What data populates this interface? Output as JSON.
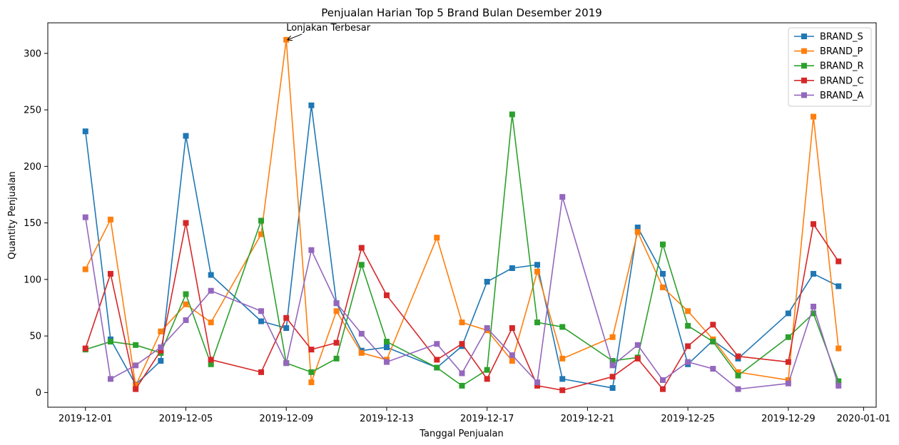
{
  "chart_data": {
    "type": "line",
    "title": "Penjualan Harian Top 5 Brand Bulan Desember 2019",
    "xlabel": "Tanggal Penjualan",
    "ylabel": "Quantity Penjualan",
    "x_ticks": [
      "2019-12-01",
      "2019-12-05",
      "2019-12-09",
      "2019-12-13",
      "2019-12-17",
      "2019-12-21",
      "2019-12-25",
      "2019-12-29",
      "2020-01-01"
    ],
    "y_ticks": [
      0,
      50,
      100,
      150,
      200,
      250,
      300
    ],
    "xlim": [
      "2019-11-29",
      "2020-01-01"
    ],
    "ylim": [
      -13,
      327
    ],
    "legend_position": "top-right",
    "grid": false,
    "series": [
      {
        "name": "BRAND_S",
        "color": "#1f77b4",
        "points": [
          [
            "2019-12-01",
            231
          ],
          [
            "2019-12-02",
            47
          ],
          [
            "2019-12-03",
            7
          ],
          [
            "2019-12-04",
            28
          ],
          [
            "2019-12-05",
            227
          ],
          [
            "2019-12-06",
            104
          ],
          [
            "2019-12-08",
            63
          ],
          [
            "2019-12-09",
            57
          ],
          [
            "2019-12-10",
            254
          ],
          [
            "2019-12-11",
            79
          ],
          [
            "2019-12-12",
            37
          ],
          [
            "2019-12-13",
            40
          ],
          [
            "2019-12-15",
            22
          ],
          [
            "2019-12-16",
            41
          ],
          [
            "2019-12-17",
            98
          ],
          [
            "2019-12-18",
            110
          ],
          [
            "2019-12-19",
            113
          ],
          [
            "2019-12-20",
            12
          ],
          [
            "2019-12-22",
            4
          ],
          [
            "2019-12-23",
            146
          ],
          [
            "2019-12-24",
            105
          ],
          [
            "2019-12-25",
            25
          ],
          [
            "2019-12-26",
            46
          ],
          [
            "2019-12-27",
            30
          ],
          [
            "2019-12-29",
            70
          ],
          [
            "2019-12-30",
            105
          ],
          [
            "2019-12-31",
            94
          ]
        ]
      },
      {
        "name": "BRAND_P",
        "color": "#ff7f0e",
        "points": [
          [
            "2019-12-01",
            109
          ],
          [
            "2019-12-02",
            153
          ],
          [
            "2019-12-03",
            6
          ],
          [
            "2019-12-04",
            54
          ],
          [
            "2019-12-05",
            78
          ],
          [
            "2019-12-06",
            62
          ],
          [
            "2019-12-08",
            140
          ],
          [
            "2019-12-09",
            312
          ],
          [
            "2019-12-10",
            9
          ],
          [
            "2019-12-11",
            72
          ],
          [
            "2019-12-12",
            35
          ],
          [
            "2019-12-13",
            29
          ],
          [
            "2019-12-15",
            137
          ],
          [
            "2019-12-16",
            62
          ],
          [
            "2019-12-17",
            55
          ],
          [
            "2019-12-18",
            28
          ],
          [
            "2019-12-19",
            107
          ],
          [
            "2019-12-20",
            30
          ],
          [
            "2019-12-22",
            49
          ],
          [
            "2019-12-23",
            142
          ],
          [
            "2019-12-24",
            93
          ],
          [
            "2019-12-25",
            72
          ],
          [
            "2019-12-26",
            47
          ],
          [
            "2019-12-27",
            18
          ],
          [
            "2019-12-29",
            11
          ],
          [
            "2019-12-30",
            244
          ],
          [
            "2019-12-31",
            39
          ]
        ]
      },
      {
        "name": "BRAND_R",
        "color": "#2ca02c",
        "points": [
          [
            "2019-12-01",
            38
          ],
          [
            "2019-12-02",
            45
          ],
          [
            "2019-12-03",
            42
          ],
          [
            "2019-12-04",
            35
          ],
          [
            "2019-12-05",
            87
          ],
          [
            "2019-12-06",
            25
          ],
          [
            "2019-12-08",
            152
          ],
          [
            "2019-12-09",
            26
          ],
          [
            "2019-12-10",
            18
          ],
          [
            "2019-12-11",
            30
          ],
          [
            "2019-12-12",
            113
          ],
          [
            "2019-12-13",
            45
          ],
          [
            "2019-12-15",
            22
          ],
          [
            "2019-12-16",
            6
          ],
          [
            "2019-12-17",
            20
          ],
          [
            "2019-12-18",
            246
          ],
          [
            "2019-12-19",
            62
          ],
          [
            "2019-12-20",
            58
          ],
          [
            "2019-12-22",
            28
          ],
          [
            "2019-12-23",
            31
          ],
          [
            "2019-12-24",
            131
          ],
          [
            "2019-12-25",
            59
          ],
          [
            "2019-12-26",
            45
          ],
          [
            "2019-12-27",
            15
          ],
          [
            "2019-12-29",
            49
          ],
          [
            "2019-12-30",
            70
          ],
          [
            "2019-12-31",
            10
          ]
        ]
      },
      {
        "name": "BRAND_C",
        "color": "#d62728",
        "points": [
          [
            "2019-12-01",
            39
          ],
          [
            "2019-12-02",
            105
          ],
          [
            "2019-12-03",
            3
          ],
          [
            "2019-12-04",
            37
          ],
          [
            "2019-12-05",
            150
          ],
          [
            "2019-12-06",
            29
          ],
          [
            "2019-12-08",
            18
          ],
          [
            "2019-12-09",
            66
          ],
          [
            "2019-12-10",
            38
          ],
          [
            "2019-12-11",
            44
          ],
          [
            "2019-12-12",
            128
          ],
          [
            "2019-12-13",
            86
          ],
          [
            "2019-12-15",
            29
          ],
          [
            "2019-12-16",
            43
          ],
          [
            "2019-12-17",
            12
          ],
          [
            "2019-12-18",
            57
          ],
          [
            "2019-12-19",
            6
          ],
          [
            "2019-12-20",
            2
          ],
          [
            "2019-12-22",
            14
          ],
          [
            "2019-12-23",
            30
          ],
          [
            "2019-12-24",
            3
          ],
          [
            "2019-12-25",
            41
          ],
          [
            "2019-12-26",
            60
          ],
          [
            "2019-12-27",
            32
          ],
          [
            "2019-12-29",
            27
          ],
          [
            "2019-12-30",
            149
          ],
          [
            "2019-12-31",
            116
          ]
        ]
      },
      {
        "name": "BRAND_A",
        "color": "#9467bd",
        "points": [
          [
            "2019-12-01",
            155
          ],
          [
            "2019-12-02",
            12
          ],
          [
            "2019-12-03",
            24
          ],
          [
            "2019-12-04",
            40
          ],
          [
            "2019-12-05",
            64
          ],
          [
            "2019-12-06",
            90
          ],
          [
            "2019-12-08",
            72
          ],
          [
            "2019-12-09",
            26
          ],
          [
            "2019-12-10",
            126
          ],
          [
            "2019-12-11",
            79
          ],
          [
            "2019-12-12",
            52
          ],
          [
            "2019-12-13",
            27
          ],
          [
            "2019-12-15",
            43
          ],
          [
            "2019-12-16",
            17
          ],
          [
            "2019-12-17",
            57
          ],
          [
            "2019-12-18",
            33
          ],
          [
            "2019-12-19",
            9
          ],
          [
            "2019-12-20",
            173
          ],
          [
            "2019-12-22",
            24
          ],
          [
            "2019-12-23",
            42
          ],
          [
            "2019-12-24",
            11
          ],
          [
            "2019-12-25",
            27
          ],
          [
            "2019-12-26",
            21
          ],
          [
            "2019-12-27",
            3
          ],
          [
            "2019-12-29",
            8
          ],
          [
            "2019-12-30",
            76
          ],
          [
            "2019-12-31",
            6
          ]
        ]
      }
    ],
    "annotation": {
      "text": "Lonjakan Terbesar",
      "target": [
        "2019-12-09",
        312
      ]
    }
  }
}
